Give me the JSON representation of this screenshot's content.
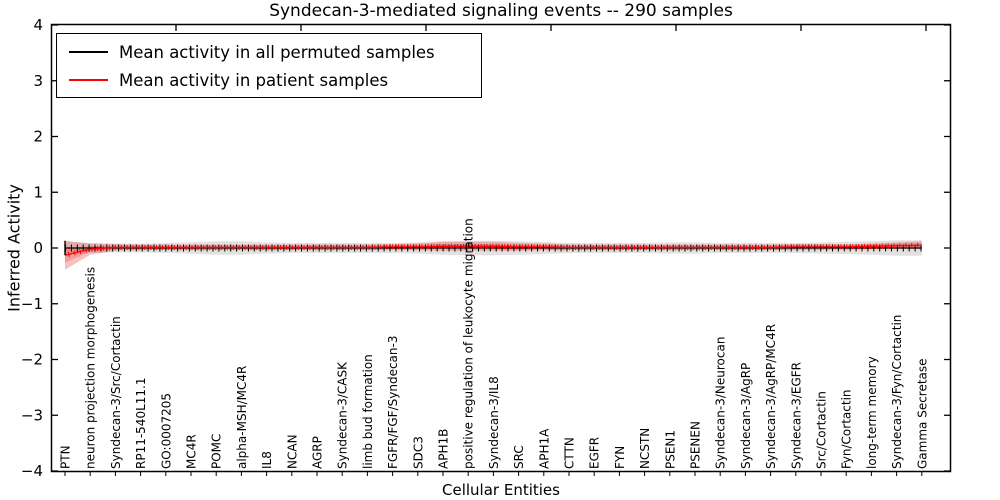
{
  "title": "Syndecan-3-mediated signaling events -- 290 samples",
  "legend": {
    "items": [
      {
        "label": "Mean activity in all permuted samples",
        "color": "#000000"
      },
      {
        "label": "Mean activity in patient samples",
        "color": "#ff0000"
      }
    ]
  },
  "chart_data": {
    "type": "line",
    "title": "Syndecan-3-mediated signaling events -- 290 samples",
    "xlabel": "Cellular Entities",
    "ylabel": "Inferred Activity",
    "ylim": [
      -4,
      4
    ],
    "yticks": [
      4,
      3,
      2,
      1,
      0,
      -1,
      -2,
      -3,
      -4
    ],
    "grid": false,
    "legend_position": "upper left",
    "band_colors": {
      "permuted": "#dcdcdc",
      "patient": "#e83333"
    },
    "categories": [
      "PTN",
      "neuron projection morphogenesis",
      "Syndecan-3/Src/Cortactin",
      "RP11-540L11.1",
      "GO:0007205",
      "MC4R",
      "POMC",
      "alpha-MSH/MC4R",
      "IL8",
      "NCAN",
      "AGRP",
      "Syndecan-3/CASK",
      "limb bud formation",
      "FGFR/FGF/Syndecan-3",
      "SDC3",
      "APH1B",
      "positive regulation of leukocyte migration",
      "Syndecan-3/IL8",
      "SRC",
      "APH1A",
      "CTTN",
      "EGFR",
      "FYN",
      "NCSTN",
      "PSEN1",
      "PSENEN",
      "Syndecan-3/Neurocan",
      "Syndecan-3/AgRP",
      "Syndecan-3/AgRP/MC4R",
      "Syndecan-3/EGFR",
      "Src/Cortactin",
      "Fyn/Cortactin",
      "long-term memory",
      "Syndecan-3/Fyn/Cortactin",
      "Gamma Secretase"
    ],
    "series": [
      {
        "name": "Mean activity in all permuted samples",
        "color": "#000000",
        "values": [
          0,
          0,
          0,
          0,
          0,
          0,
          0,
          0,
          0,
          0,
          0,
          0,
          0,
          0,
          0,
          0,
          0,
          0,
          0,
          0,
          0,
          0,
          0,
          0,
          0,
          0,
          0,
          0,
          0,
          0,
          0,
          0,
          0,
          0,
          0
        ],
        "band_halfwidth": [
          0.12,
          0.09,
          0.08,
          0.08,
          0.09,
          0.1,
          0.12,
          0.12,
          0.1,
          0.09,
          0.09,
          0.09,
          0.09,
          0.09,
          0.1,
          0.12,
          0.13,
          0.13,
          0.12,
          0.11,
          0.09,
          0.09,
          0.09,
          0.09,
          0.1,
          0.1,
          0.09,
          0.09,
          0.09,
          0.09,
          0.1,
          0.11,
          0.12,
          0.14,
          0.14
        ]
      },
      {
        "name": "Mean activity in patient samples",
        "color": "#ff0000",
        "values": [
          -0.13,
          -0.02,
          0.01,
          0.01,
          0.01,
          0.01,
          0.01,
          0.01,
          0.01,
          0.01,
          0.01,
          0.01,
          0.01,
          0.02,
          0.02,
          0.03,
          0.03,
          0.03,
          0.02,
          0.02,
          0.01,
          0.01,
          0.01,
          0.01,
          0.01,
          0.01,
          0.01,
          0.01,
          0.01,
          0.02,
          0.02,
          0.02,
          0.03,
          0.04,
          0.05
        ],
        "band_halfwidth": [
          0.26,
          0.1,
          0.06,
          0.05,
          0.05,
          0.05,
          0.05,
          0.05,
          0.05,
          0.05,
          0.05,
          0.05,
          0.05,
          0.05,
          0.06,
          0.08,
          0.08,
          0.08,
          0.07,
          0.06,
          0.05,
          0.05,
          0.05,
          0.05,
          0.05,
          0.05,
          0.05,
          0.05,
          0.05,
          0.05,
          0.05,
          0.05,
          0.05,
          0.06,
          0.07
        ]
      }
    ]
  }
}
